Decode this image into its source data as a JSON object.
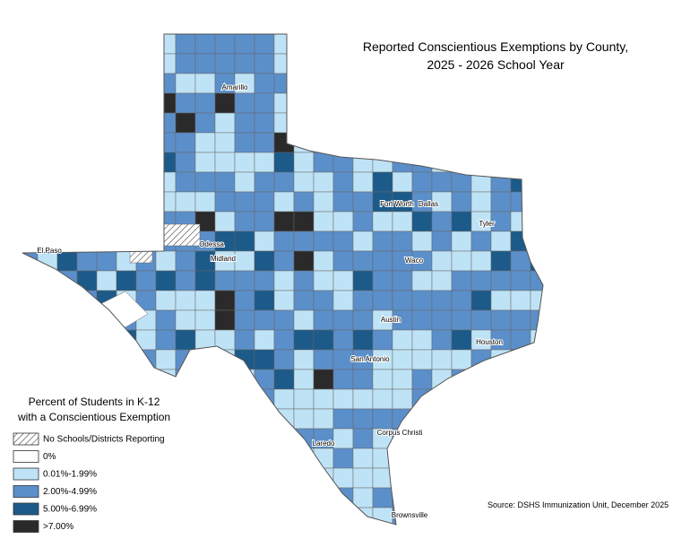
{
  "title": [
    "Reported Conscientious Exemptions by County,",
    "2025 - 2026 School Year"
  ],
  "cities": [
    "Amarillo",
    "El Paso",
    "Odessa",
    "Midland",
    "Fort Worth",
    "Dallas",
    "Tyler",
    "Waco",
    "Austin",
    "Houston",
    "San Antonio",
    "Corpus Christi",
    "Laredo",
    "Brownsville"
  ],
  "legend": {
    "title": [
      "Percent of Students in K-12",
      "with a Conscientious Exemption"
    ],
    "items": [
      {
        "label": "No Schools/Districts Reporting",
        "color": "hatch"
      },
      {
        "label": "0%",
        "color": "#ffffff"
      },
      {
        "label": "0.01%-1.99%",
        "color": "#bfe3f6"
      },
      {
        "label": "2.00%-4.99%",
        "color": "#5b8fca"
      },
      {
        "label": "5.00%-6.99%",
        "color": "#1c5a89"
      },
      {
        "label": ">7.00%",
        "color": "#2a2a2a"
      }
    ]
  },
  "source": "Source: DSHS Immunization Unit, December 2025"
}
